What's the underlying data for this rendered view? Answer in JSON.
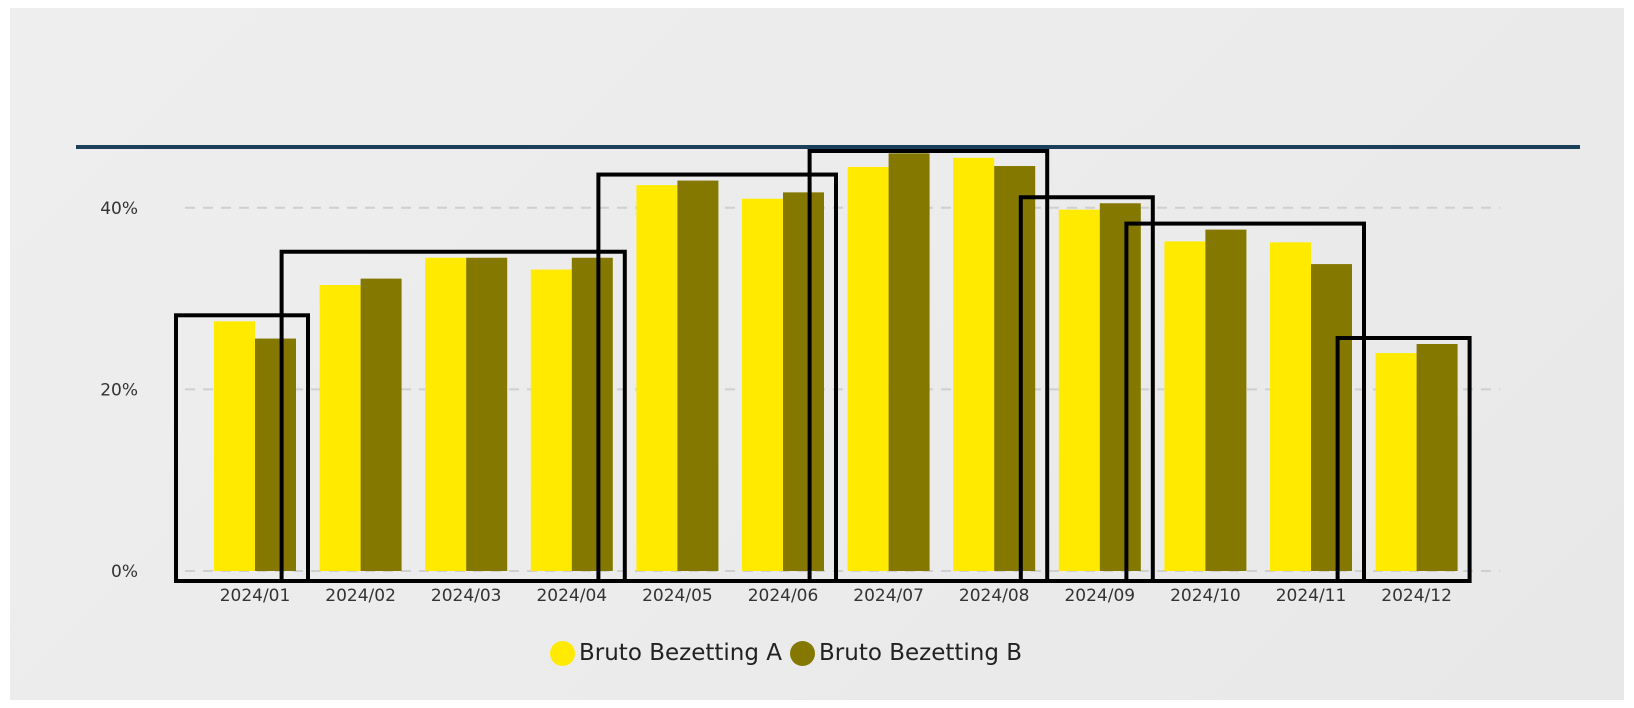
{
  "chart_data": {
    "type": "bar",
    "categories": [
      "2024/01",
      "2024/02",
      "2024/03",
      "2024/04",
      "2024/05",
      "2024/06",
      "2024/07",
      "2024/08",
      "2024/09",
      "2024/10",
      "2024/11",
      "2024/12"
    ],
    "series": [
      {
        "name": "Bruto Bezetting A",
        "color": "#ffea00",
        "values": [
          27.5,
          31.5,
          34.5,
          33.2,
          42.5,
          41.0,
          44.5,
          45.5,
          39.8,
          36.3,
          36.2,
          24.0
        ]
      },
      {
        "name": "Bruto Bezetting B",
        "color": "#857800",
        "values": [
          25.6,
          32.2,
          34.5,
          34.5,
          43.0,
          41.7,
          46.0,
          44.6,
          40.5,
          37.6,
          33.8,
          25.0
        ]
      }
    ],
    "y_ticks": [
      "0%",
      "20%",
      "40%"
    ],
    "ylim": [
      0,
      50
    ],
    "grid": true,
    "legend_position": "bottom-center",
    "reference_line_color": "#1c3f5a",
    "highlight_groups": [
      [
        0,
        0
      ],
      [
        1,
        3
      ],
      [
        4,
        5
      ],
      [
        6,
        7
      ],
      [
        8,
        8
      ],
      [
        9,
        10
      ],
      [
        11,
        11
      ]
    ]
  },
  "legend": {
    "a_label": "Bruto Bezetting A",
    "b_label": "Bruto Bezetting B"
  }
}
